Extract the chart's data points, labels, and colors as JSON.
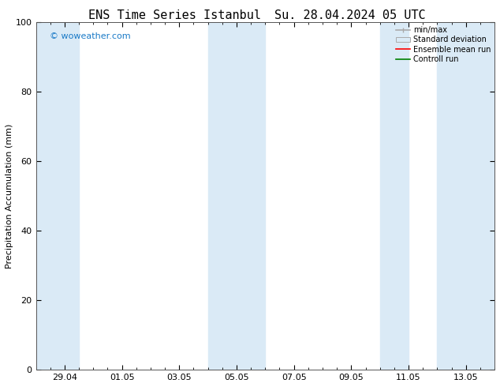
{
  "title_left": "ENS Time Series Istanbul",
  "title_right": "Su. 28.04.2024 05 UTC",
  "ylabel": "Precipitation Accumulation (mm)",
  "ylim": [
    0,
    100
  ],
  "yticks": [
    0,
    20,
    40,
    60,
    80,
    100
  ],
  "background_color": "#ffffff",
  "plot_bg_color": "#ffffff",
  "watermark": "© woweather.com",
  "watermark_color": "#1a7ac7",
  "shaded_band_color": "#daeaf6",
  "x_tick_labels": [
    "29.04",
    "01.05",
    "03.05",
    "05.05",
    "07.05",
    "09.05",
    "11.05",
    "13.05"
  ],
  "x_tick_positions": [
    1,
    3,
    5,
    7,
    9,
    11,
    13,
    15
  ],
  "xlim": [
    0,
    16
  ],
  "shaded_regions": [
    {
      "x_start": 0.0,
      "x_end": 1.5
    },
    {
      "x_start": 6.0,
      "x_end": 8.0
    },
    {
      "x_start": 12.0,
      "x_end": 13.0
    },
    {
      "x_start": 14.0,
      "x_end": 16.0
    }
  ],
  "legend_items": [
    {
      "label": "min/max",
      "color": "#aaaaaa",
      "type": "errorbar"
    },
    {
      "label": "Standard deviation",
      "color": "#daeaf6",
      "type": "bar"
    },
    {
      "label": "Ensemble mean run",
      "color": "#ff0000",
      "type": "line"
    },
    {
      "label": "Controll run",
      "color": "#008000",
      "type": "line"
    }
  ],
  "title_fontsize": 11,
  "tick_fontsize": 8,
  "label_fontsize": 8,
  "legend_fontsize": 7,
  "watermark_fontsize": 8
}
